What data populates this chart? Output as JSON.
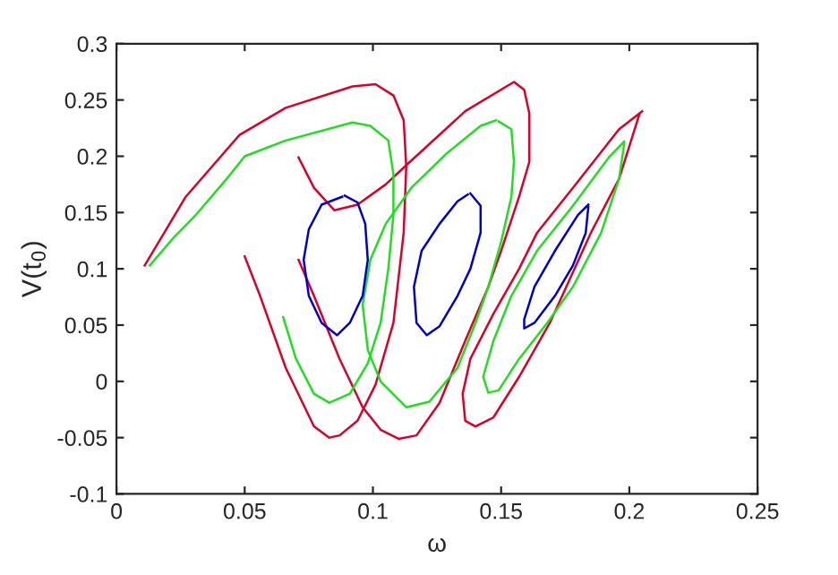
{
  "chart_data": {
    "type": "line",
    "xlabel": "ω",
    "ylabel": "V(t$_{0}$)",
    "xlim": [
      0,
      0.25
    ],
    "ylim": [
      -0.1,
      0.3
    ],
    "xticks": [
      0,
      0.05,
      0.1,
      0.15,
      0.2,
      0.25
    ],
    "yticks": [
      -0.1,
      -0.05,
      0,
      0.05,
      0.1,
      0.15,
      0.2,
      0.25,
      0.3
    ],
    "grid": false,
    "marker": "none",
    "line_style": "solid",
    "series": [
      {
        "color": "#d9002a",
        "x": [
          0.011,
          0.027,
          0.048,
          0.066,
          0.092,
          0.101,
          0.108,
          0.112,
          0.113,
          0.112,
          0.108,
          0.101,
          0.094,
          0.087,
          0.083,
          0.077,
          0.066,
          0.056,
          0.05
        ],
        "values": [
          0.103,
          0.164,
          0.219,
          0.243,
          0.262,
          0.264,
          0.254,
          0.232,
          0.191,
          0.132,
          0.052,
          -0.003,
          -0.035,
          -0.048,
          -0.05,
          -0.04,
          0.012,
          0.076,
          0.111
        ]
      },
      {
        "color": "#d9002a",
        "x": [
          0.071,
          0.077,
          0.085,
          0.094,
          0.105,
          0.113,
          0.136,
          0.155,
          0.159,
          0.161,
          0.161,
          0.157,
          0.15,
          0.145,
          0.136,
          0.126,
          0.117,
          0.11,
          0.103,
          0.096,
          0.087,
          0.077,
          0.071
        ],
        "values": [
          0.199,
          0.172,
          0.152,
          0.157,
          0.175,
          0.192,
          0.24,
          0.266,
          0.259,
          0.238,
          0.195,
          0.164,
          0.116,
          0.084,
          0.036,
          -0.019,
          -0.048,
          -0.051,
          -0.043,
          -0.023,
          0.02,
          0.076,
          0.108
        ]
      },
      {
        "color": "#d9002a",
        "x": [
          0.205,
          0.196,
          0.178,
          0.164,
          0.157,
          0.147,
          0.138,
          0.135,
          0.136,
          0.14,
          0.147,
          0.157,
          0.169,
          0.185,
          0.196,
          0.204
        ],
        "values": [
          0.24,
          0.224,
          0.172,
          0.132,
          0.1,
          0.06,
          0.02,
          -0.011,
          -0.035,
          -0.04,
          -0.032,
          0.004,
          0.052,
          0.132,
          0.18,
          0.238
        ]
      },
      {
        "color": "#22dd22",
        "x": [
          0.013,
          0.022,
          0.031,
          0.043,
          0.05,
          0.066,
          0.092,
          0.099,
          0.106,
          0.108,
          0.108,
          0.106,
          0.103,
          0.098,
          0.091,
          0.083,
          0.077,
          0.07,
          0.065
        ],
        "values": [
          0.103,
          0.127,
          0.148,
          0.18,
          0.2,
          0.214,
          0.23,
          0.227,
          0.214,
          0.184,
          0.148,
          0.1,
          0.052,
          0.016,
          -0.011,
          -0.019,
          -0.011,
          0.02,
          0.057
        ]
      },
      {
        "color": "#22dd22",
        "x": [
          0.148,
          0.142,
          0.129,
          0.115,
          0.105,
          0.099,
          0.096,
          0.098,
          0.103,
          0.113,
          0.122,
          0.133,
          0.14,
          0.145,
          0.15,
          0.154,
          0.155,
          0.154,
          0.149
        ],
        "values": [
          0.232,
          0.227,
          0.203,
          0.172,
          0.14,
          0.108,
          0.068,
          0.028,
          0.0,
          -0.023,
          -0.018,
          0.012,
          0.052,
          0.084,
          0.124,
          0.164,
          0.195,
          0.224,
          0.231
        ]
      },
      {
        "color": "#22dd22",
        "x": [
          0.198,
          0.192,
          0.178,
          0.164,
          0.154,
          0.147,
          0.143,
          0.145,
          0.149,
          0.157,
          0.168,
          0.178,
          0.189,
          0.196,
          0.198
        ],
        "values": [
          0.213,
          0.199,
          0.156,
          0.116,
          0.076,
          0.036,
          0.004,
          -0.01,
          -0.008,
          0.02,
          0.052,
          0.084,
          0.132,
          0.18,
          0.211
        ]
      },
      {
        "color": "#0000cc",
        "x": [
          0.089,
          0.094,
          0.097,
          0.098,
          0.096,
          0.091,
          0.086,
          0.08,
          0.075,
          0.073,
          0.075,
          0.08,
          0.088
        ],
        "values": [
          0.165,
          0.159,
          0.14,
          0.108,
          0.076,
          0.052,
          0.041,
          0.052,
          0.076,
          0.108,
          0.135,
          0.157,
          0.164
        ]
      },
      {
        "color": "#0000cc",
        "x": [
          0.138,
          0.142,
          0.142,
          0.138,
          0.133,
          0.126,
          0.121,
          0.117,
          0.116,
          0.119,
          0.126,
          0.133,
          0.137
        ],
        "values": [
          0.167,
          0.156,
          0.132,
          0.1,
          0.076,
          0.049,
          0.041,
          0.052,
          0.084,
          0.116,
          0.14,
          0.16,
          0.166
        ]
      },
      {
        "color": "#0000cc",
        "x": [
          0.184,
          0.18,
          0.171,
          0.163,
          0.159,
          0.159,
          0.163,
          0.171,
          0.178,
          0.183,
          0.184
        ],
        "values": [
          0.157,
          0.148,
          0.116,
          0.084,
          0.055,
          0.047,
          0.052,
          0.076,
          0.103,
          0.132,
          0.155
        ]
      }
    ]
  }
}
